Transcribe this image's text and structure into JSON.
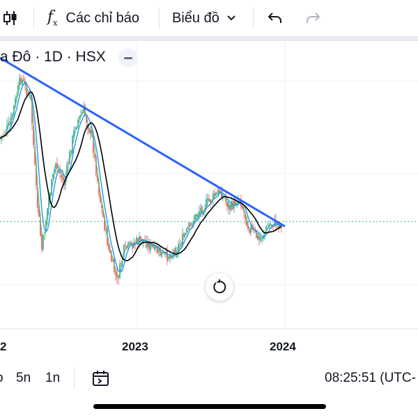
{
  "toolbar": {
    "indicators_label": "Các chỉ báo",
    "chart_type_label": "Biểu đồ"
  },
  "legend": {
    "symbol_text": "a Đô · 1D · HSX"
  },
  "x_axis": {
    "labels": [
      "2",
      "2023",
      "2024"
    ]
  },
  "bottom": {
    "range_left": "o",
    "range_5n": "5n",
    "range_1n": "1n",
    "clock": "08:25:51 (UTC-"
  },
  "colors": {
    "trendline": "#2962ff",
    "up_candle": "#26a69a",
    "down_candle": "#ef5350",
    "ma_black": "#000000",
    "ma_blue": "#2196f3",
    "ma_green": "#66bb6a",
    "price_line": "#26a69a"
  }
}
